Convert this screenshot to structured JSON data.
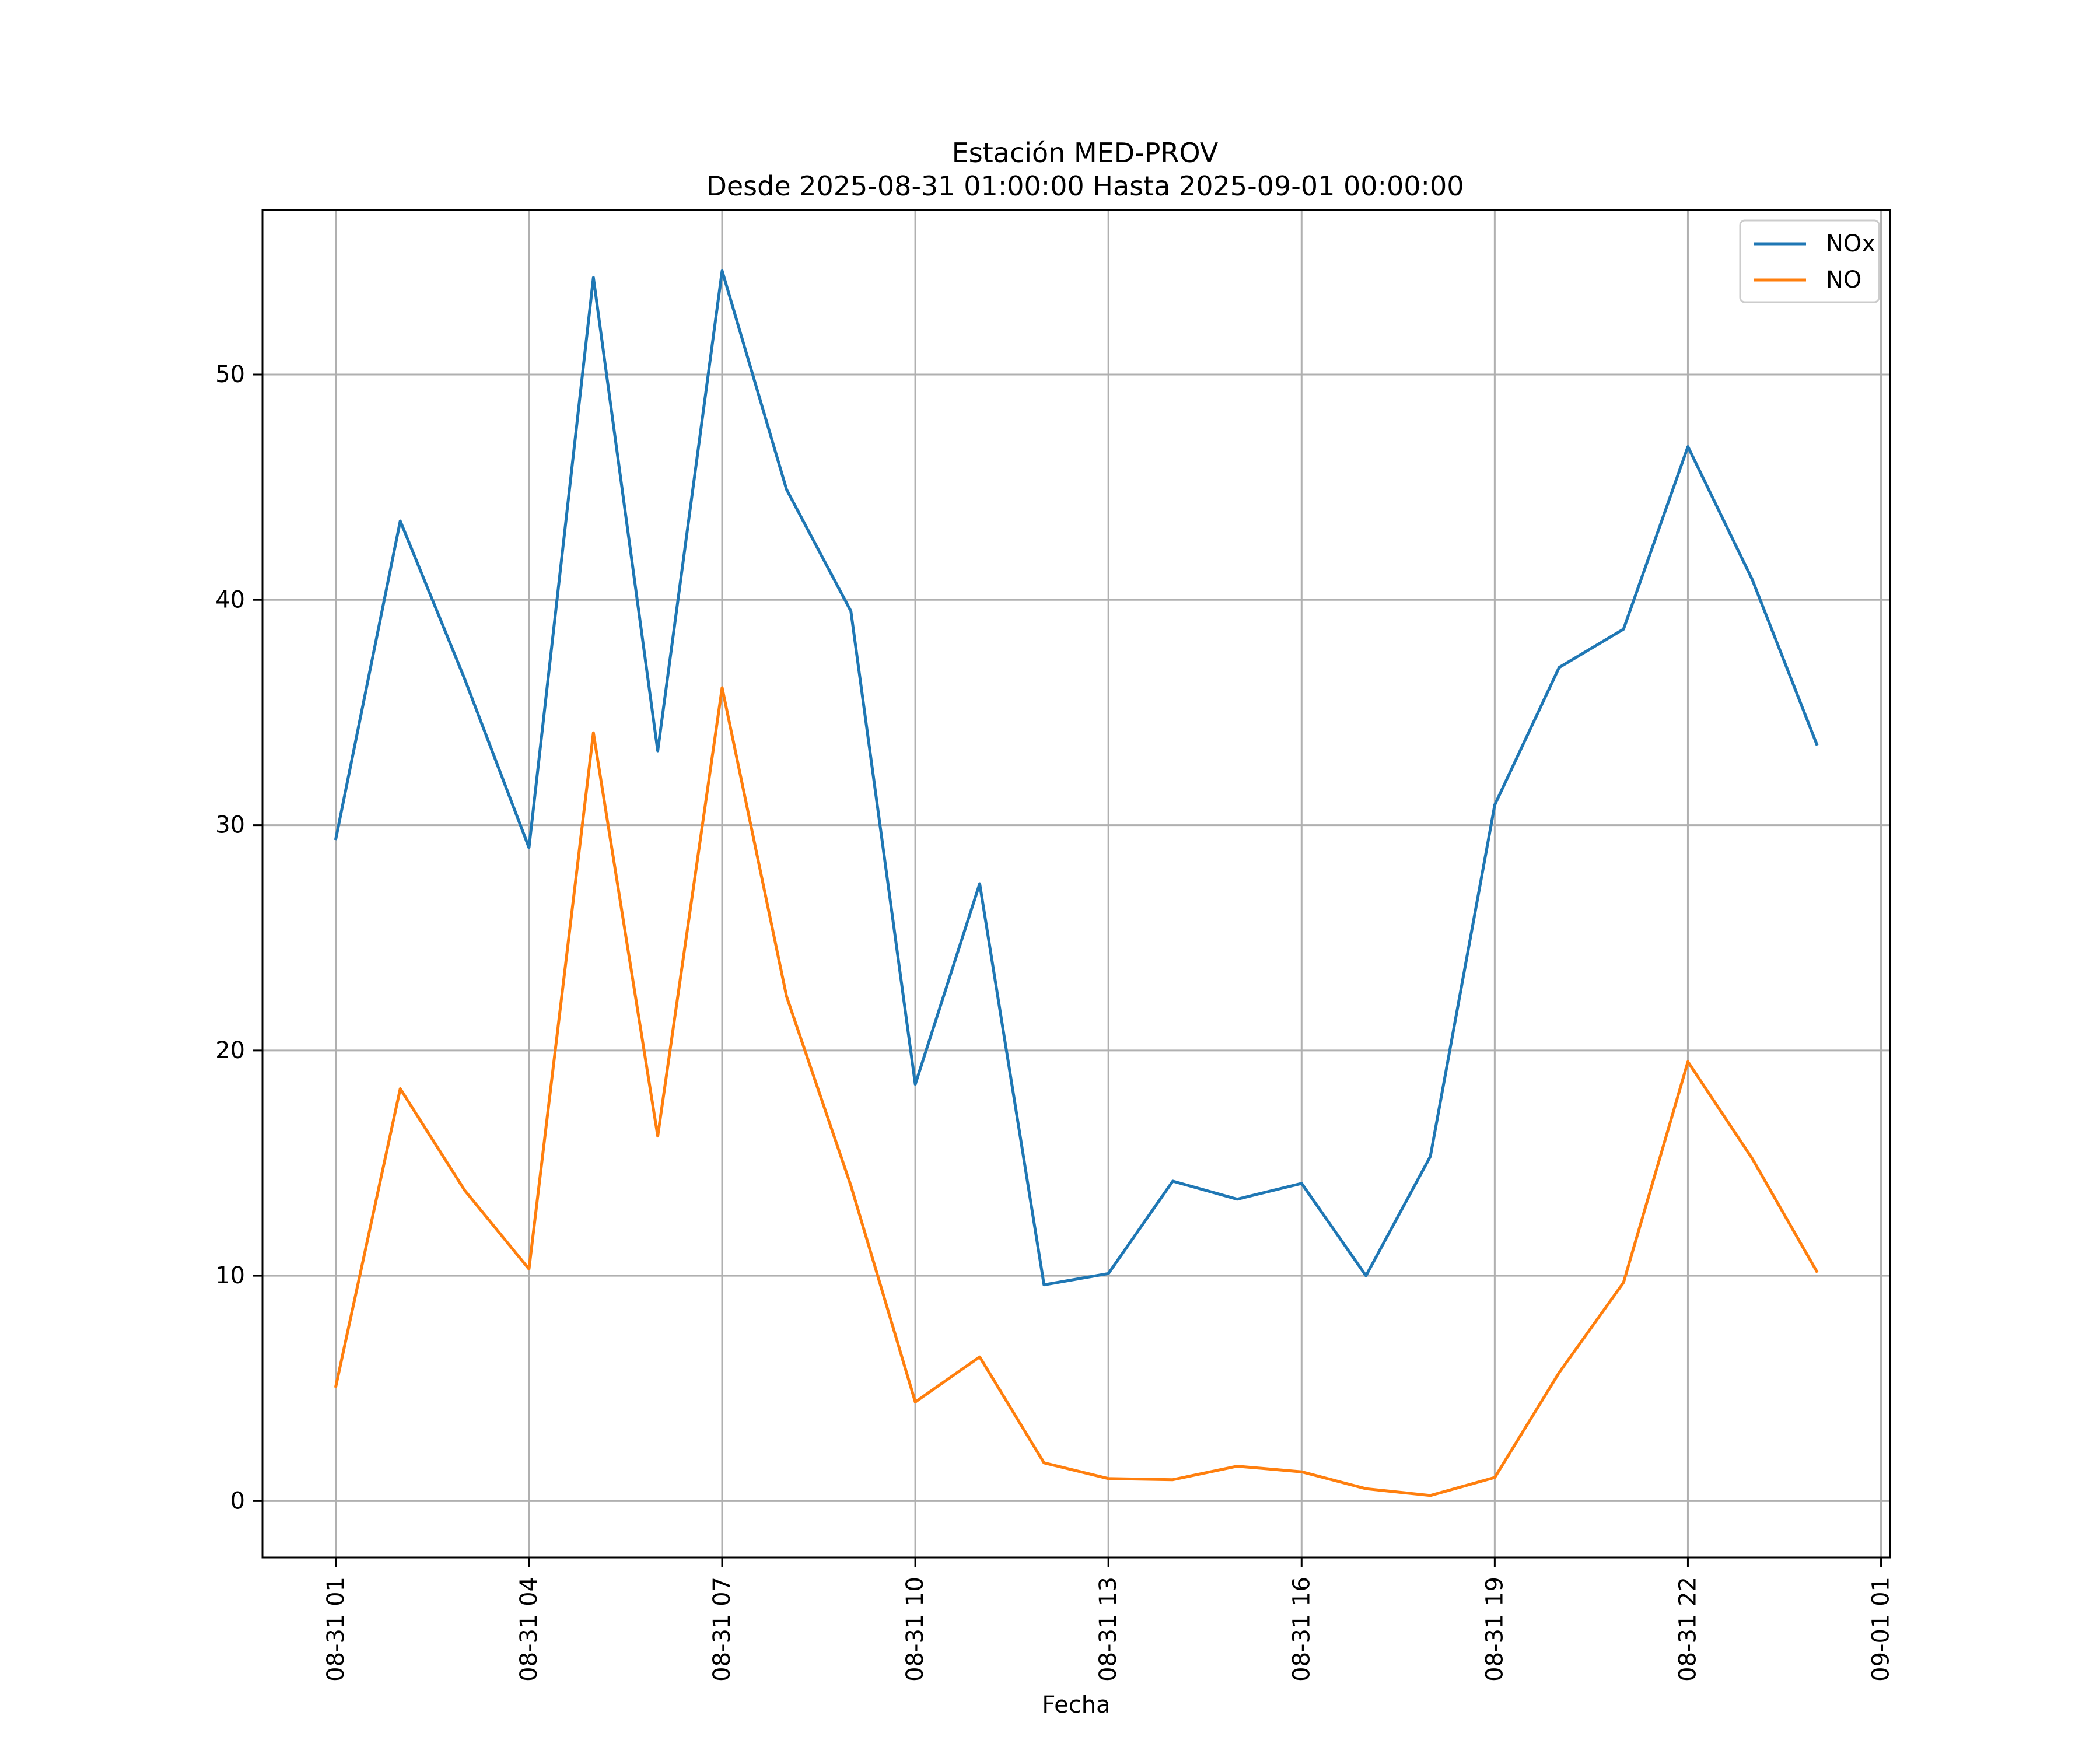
{
  "chart_data": {
    "type": "line",
    "title_line1": "Estación MED-PROV",
    "title_line2": "Desde 2025-08-31 01:00:00 Hasta 2025-09-01 00:00:00",
    "xlabel": "Fecha",
    "ylabel": "",
    "grid": true,
    "legend_position": "top-right",
    "x_hours": [
      1,
      2,
      3,
      4,
      5,
      6,
      7,
      8,
      9,
      10,
      11,
      12,
      13,
      14,
      15,
      16,
      17,
      18,
      19,
      20,
      21,
      22,
      23,
      24
    ],
    "xlim_hours": [
      -0.14,
      25.14
    ],
    "ylim": [
      -2.5,
      57.3
    ],
    "x_ticks": [
      {
        "hour": 1,
        "label": "08-31 01"
      },
      {
        "hour": 4,
        "label": "08-31 04"
      },
      {
        "hour": 7,
        "label": "08-31 07"
      },
      {
        "hour": 10,
        "label": "08-31 10"
      },
      {
        "hour": 13,
        "label": "08-31 13"
      },
      {
        "hour": 16,
        "label": "08-31 16"
      },
      {
        "hour": 19,
        "label": "08-31 19"
      },
      {
        "hour": 22,
        "label": "08-31 22"
      },
      {
        "hour": 25,
        "label": "09-01 01"
      }
    ],
    "y_ticks": [
      {
        "value": 0,
        "label": "0"
      },
      {
        "value": 10,
        "label": "10"
      },
      {
        "value": 20,
        "label": "20"
      },
      {
        "value": 30,
        "label": "30"
      },
      {
        "value": 40,
        "label": "40"
      },
      {
        "value": 50,
        "label": "50"
      }
    ],
    "series": [
      {
        "name": "NOx",
        "color": "#1f77b4",
        "values": [
          29.4,
          43.5,
          36.5,
          29.0,
          54.3,
          33.3,
          54.6,
          44.9,
          39.5,
          18.5,
          27.4,
          9.6,
          10.1,
          14.2,
          13.4,
          14.1,
          10.0,
          15.3,
          30.9,
          37.0,
          38.7,
          46.8,
          40.9,
          33.6
        ]
      },
      {
        "name": "NO",
        "color": "#ff7f0e",
        "values": [
          5.1,
          18.3,
          13.8,
          10.3,
          34.1,
          16.2,
          36.1,
          22.4,
          14.0,
          4.4,
          6.4,
          1.7,
          1.0,
          0.95,
          1.55,
          1.3,
          0.55,
          0.25,
          1.05,
          5.7,
          9.7,
          19.5,
          15.2,
          10.2
        ]
      }
    ]
  }
}
